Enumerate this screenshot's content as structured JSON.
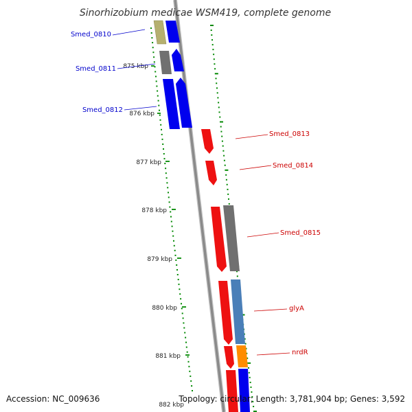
{
  "title": "Sinorhizobium medicae WSM419, complete genome",
  "footer": {
    "accession": "Accession: NC_009636",
    "topology": "Topology: circular; Length: 3,781,904 bp; Genes: 3,592"
  },
  "colors": {
    "forward_label": "#0000cc",
    "reverse_label": "#cc0000",
    "tick_marks": "#008800",
    "backbone": "#888888",
    "blue": "#0000ee",
    "red": "#ee1111",
    "gray": "#707070",
    "khaki": "#b5b070",
    "steelblue": "#4a7fb8",
    "orange": "#ff8c00"
  },
  "axis_labels": [
    "875 kbp",
    "876 kbp",
    "877 kbp",
    "878 kbp",
    "879 kbp",
    "880 kbp",
    "881 kbp",
    "882 kbp"
  ],
  "genes": [
    {
      "name": "Smed_0810",
      "strand": "forward"
    },
    {
      "name": "Smed_0811",
      "strand": "forward"
    },
    {
      "name": "Smed_0812",
      "strand": "forward"
    },
    {
      "name": "Smed_0813",
      "strand": "reverse"
    },
    {
      "name": "Smed_0814",
      "strand": "reverse"
    },
    {
      "name": "Smed_0815",
      "strand": "reverse"
    },
    {
      "name": "glyA",
      "strand": "reverse"
    },
    {
      "name": "nrdR",
      "strand": "reverse"
    }
  ]
}
